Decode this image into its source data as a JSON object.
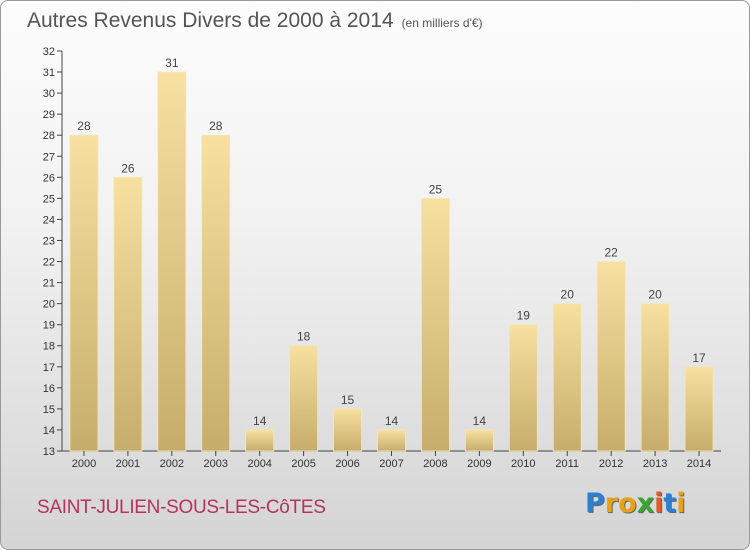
{
  "chart_data": {
    "type": "bar",
    "title": "Autres Revenus Divers de 2000 à 2014",
    "unit": "(en milliers d'€)",
    "categories": [
      "2000",
      "2001",
      "2002",
      "2003",
      "2004",
      "2005",
      "2006",
      "2007",
      "2008",
      "2009",
      "2010",
      "2011",
      "2012",
      "2013",
      "2014"
    ],
    "values": [
      28,
      26,
      31,
      28,
      14,
      18,
      15,
      14,
      25,
      14,
      19,
      20,
      22,
      20,
      17
    ],
    "ylim": [
      13,
      32
    ],
    "yticks": [
      13,
      14,
      15,
      16,
      17,
      18,
      19,
      20,
      21,
      22,
      23,
      24,
      25,
      26,
      27,
      28,
      29,
      30,
      31,
      32
    ],
    "grid": false,
    "bar_color": "#e8c96a"
  },
  "commune": "SAINT-JULIEN-SOUS-LES-CôTES",
  "logo": {
    "letters": [
      "P",
      "r",
      "o",
      "x",
      "i",
      "t",
      "i"
    ],
    "colors": [
      "#2e7fd1",
      "#e8a21a",
      "#e8a21a",
      "#3aa535",
      "#e05a2a",
      "#2e7fd1",
      "#e8a21a"
    ]
  }
}
